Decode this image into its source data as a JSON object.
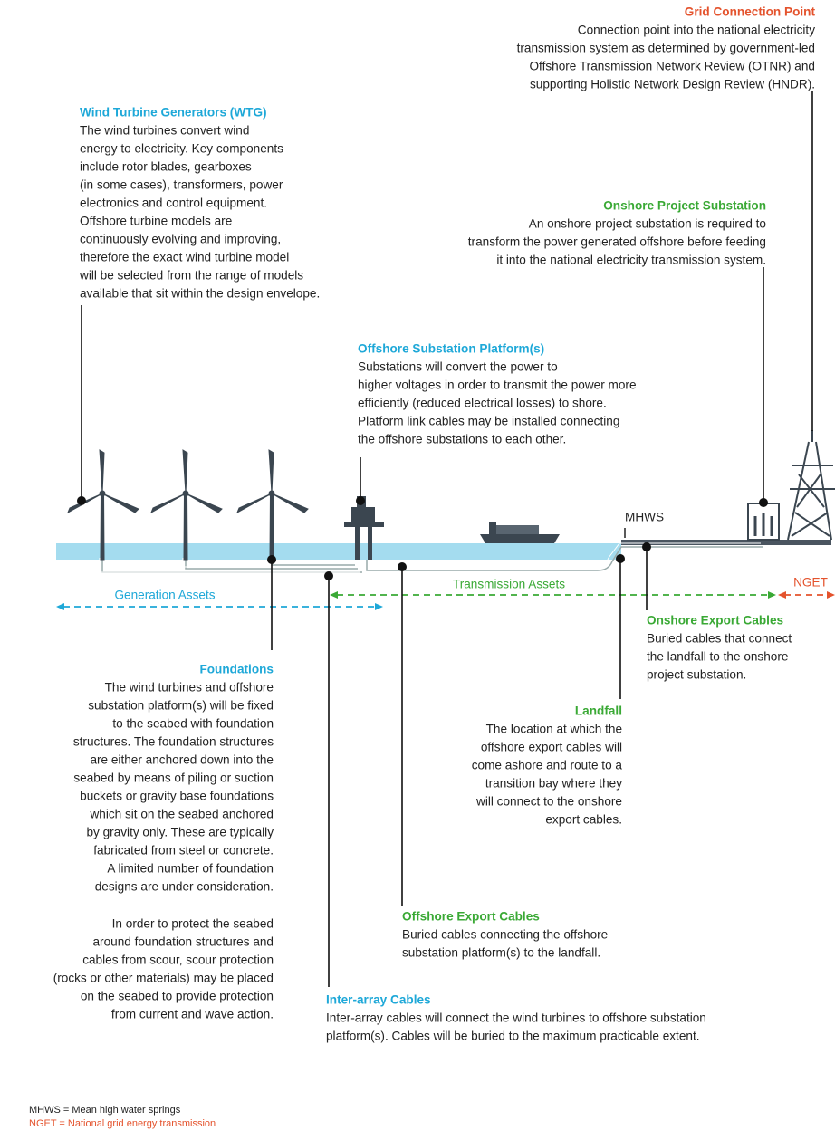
{
  "grid_connection": {
    "title": "Grid Connection Point",
    "lines": [
      "Connection point into the national electricity",
      "transmission system as determined by government-led",
      "Offshore Transmission Network Review (OTNR) and",
      "supporting Holistic Network Design Review (HNDR)."
    ]
  },
  "wtg": {
    "title": "Wind Turbine Generators (WTG)",
    "lines": [
      "The wind turbines convert wind",
      "energy to electricity. Key components",
      "include rotor blades, gearboxes",
      "(in some cases), transformers, power",
      "electronics and control equipment.",
      "Offshore turbine models are",
      "continuously evolving and improving,",
      "therefore the exact wind turbine model",
      "will be selected from the range of models",
      "available that sit within the design envelope."
    ]
  },
  "onshore_substation": {
    "title": "Onshore Project Substation",
    "lines": [
      "An onshore project substation is required to",
      "transform the power generated offshore before feeding",
      "it into the national electricity transmission system."
    ]
  },
  "offshore_substation": {
    "title": "Offshore Substation Platform(s)",
    "lines": [
      "Substations will convert the power to",
      "higher voltages in order to transmit the power more",
      "efficiently (reduced electrical losses) to shore.",
      "Platform link cables may be installed connecting",
      "the offshore substations to each other."
    ]
  },
  "mhws": "MHWS",
  "transmission_assets": "Transmission Assets",
  "generation_assets": "Generation Assets",
  "nget": "NGET",
  "onshore_export": {
    "title": "Onshore Export Cables",
    "lines": [
      "Buried cables that connect",
      "the landfall to the onshore",
      "project substation."
    ]
  },
  "foundations": {
    "title": "Foundations",
    "lines": [
      "The wind turbines and offshore",
      "substation platform(s) will be fixed",
      "to the seabed with foundation",
      "structures. The foundation structures",
      "are either anchored down into the",
      "seabed by means of piling or suction",
      "buckets or gravity base foundations",
      "which sit on the seabed anchored",
      "by gravity only. These are typically",
      "fabricated from steel or concrete.",
      "A limited number of foundation",
      "designs are under consideration."
    ],
    "lines2": [
      "In order to protect the seabed",
      "around foundation structures and",
      "cables from scour, scour protection",
      "(rocks or other materials) may be placed",
      "on the seabed to provide protection",
      "from current and wave action."
    ]
  },
  "landfall": {
    "title": "Landfall",
    "lines": [
      "The location at which the",
      "offshore export cables will",
      "come ashore and route to a",
      "transition bay where they",
      "will connect to the onshore",
      "export cables."
    ]
  },
  "offshore_export": {
    "title": "Offshore Export Cables",
    "lines": [
      "Buried cables connecting the offshore",
      "substation platform(s) to the landfall."
    ]
  },
  "inter_array": {
    "title": "Inter-array Cables",
    "lines": [
      "Inter-array cables will connect the wind turbines to offshore substation",
      "platform(s). Cables will be buried to the maximum practicable extent."
    ]
  },
  "footnotes": [
    "MHWS = Mean high water springs",
    "NGET = National grid energy transmission"
  ]
}
